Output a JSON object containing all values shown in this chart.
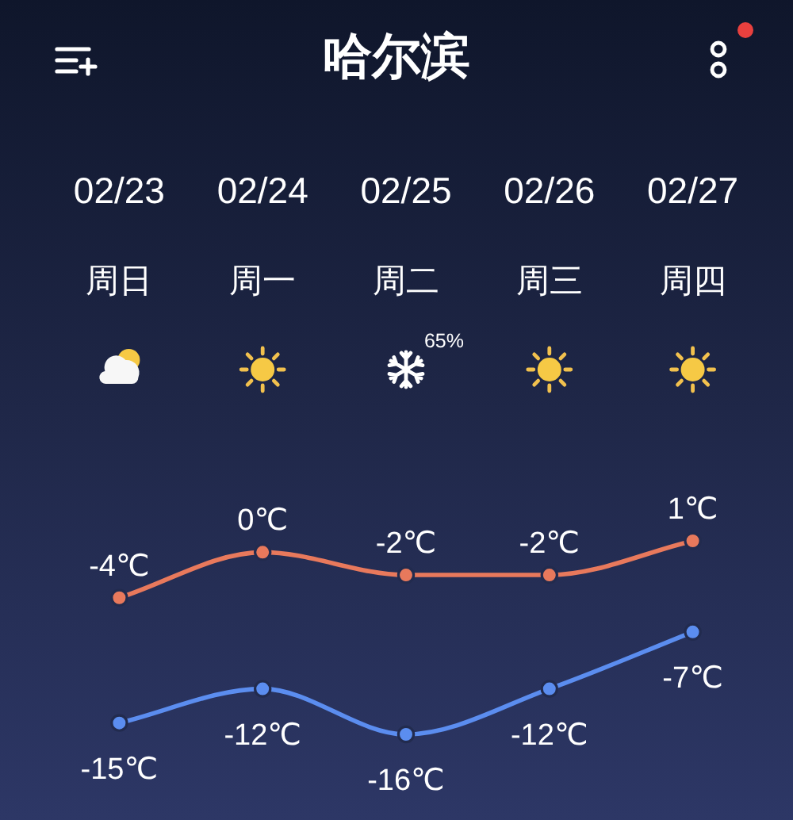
{
  "chart_data": {
    "type": "line",
    "title": "哈尔滨",
    "categories": [
      "02/23\n周日",
      "02/24\n周一",
      "02/25\n周二",
      "02/26\n周三",
      "02/27\n周四"
    ],
    "series": [
      {
        "color": "#e8795c",
        "values": [
          -4,
          0,
          -2,
          -2,
          1
        ],
        "value_labels": [
          "-4℃",
          "0℃",
          "-2℃",
          "-2℃",
          "1℃"
        ]
      },
      {
        "color": "#5b8def",
        "values": [
          -15,
          -12,
          -16,
          -12,
          -7
        ],
        "value_labels": [
          "-15℃",
          "-12℃",
          "-16℃",
          "-12℃",
          "-7℃"
        ]
      }
    ],
    "marker": "circle",
    "line_style": "solid",
    "annotations": [
      "65%"
    ]
  }
}
